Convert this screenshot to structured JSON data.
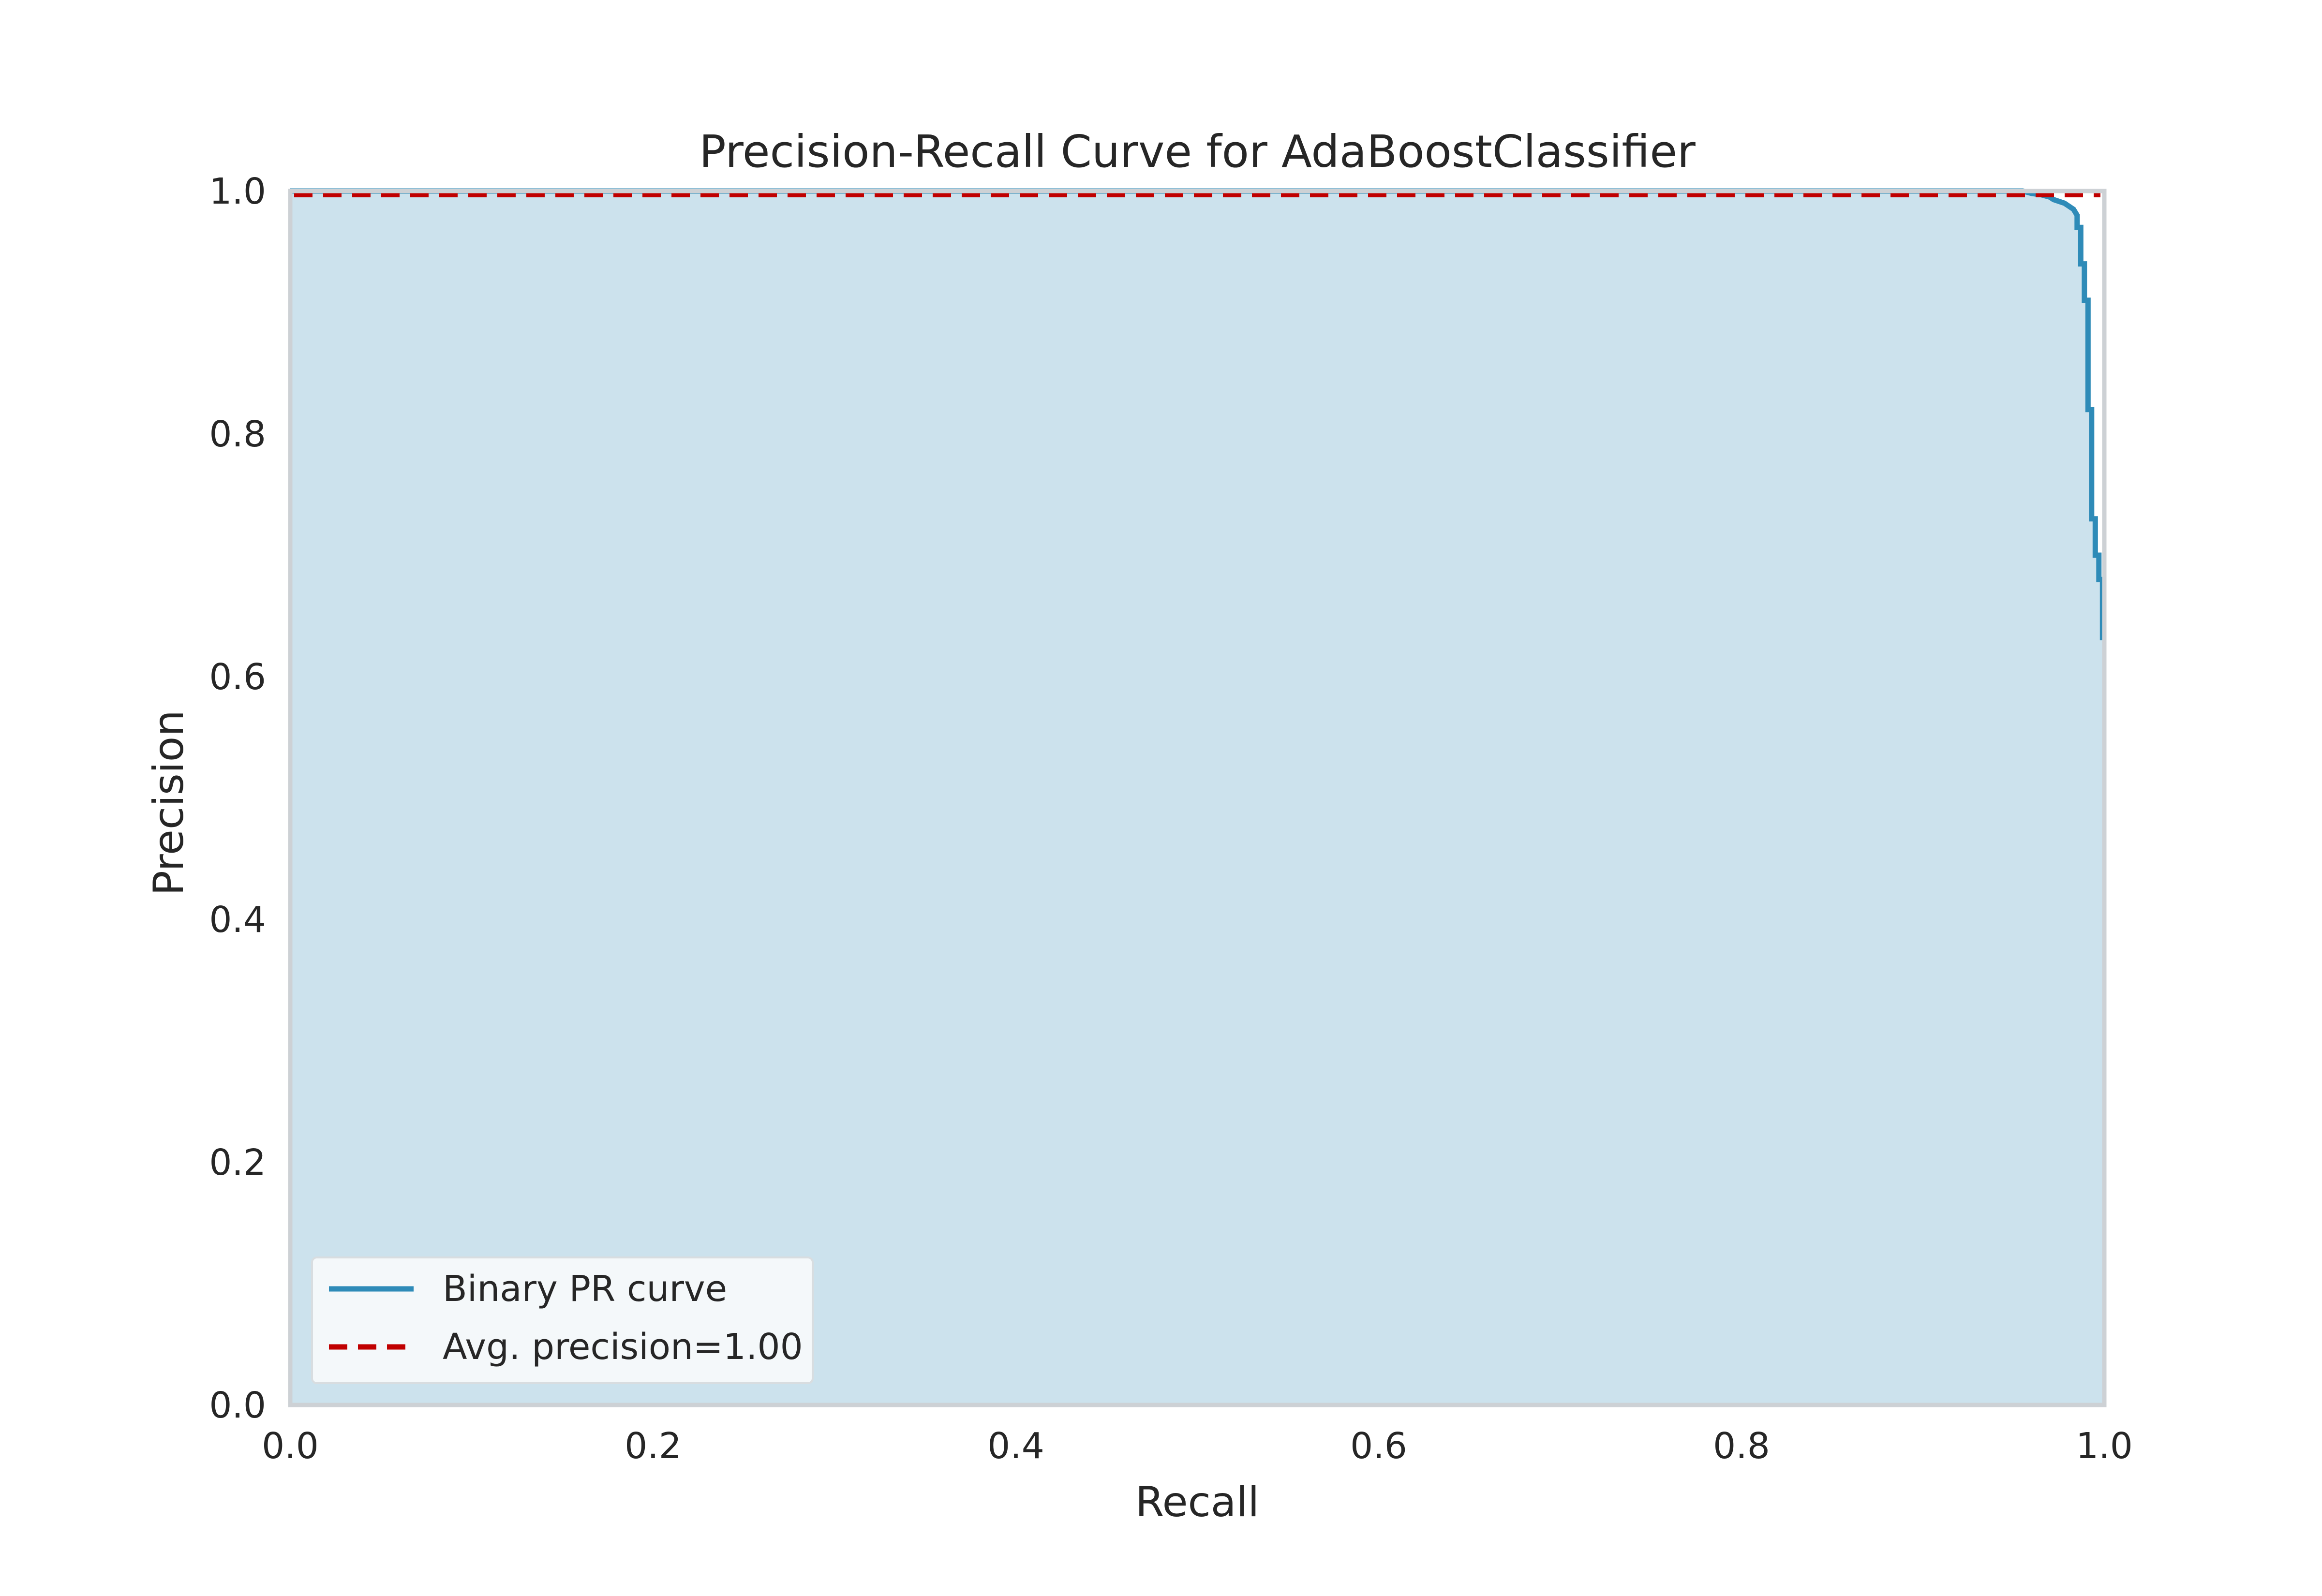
{
  "chart_data": {
    "type": "line",
    "title": "Precision-Recall Curve for AdaBoostClassifier",
    "xlabel": "Recall",
    "ylabel": "Precision",
    "xlim": [
      0.0,
      1.0
    ],
    "ylim": [
      0.0,
      1.0
    ],
    "grid": false,
    "legend_position": "lower-left",
    "xticks": [
      "0.0",
      "0.2",
      "0.4",
      "0.6",
      "0.8",
      "1.0"
    ],
    "yticks": [
      "0.0",
      "0.2",
      "0.4",
      "0.6",
      "0.8",
      "1.0"
    ],
    "series": [
      {
        "name": "Binary PR curve",
        "style": "solid",
        "color": "#2e8bb8",
        "fill_color": "#cce2ed",
        "x": [
          0.0,
          0.94,
          0.955,
          0.96,
          0.965,
          0.97,
          0.972,
          0.978,
          0.983,
          0.985,
          0.985,
          0.987,
          0.987,
          0.989,
          0.989,
          0.991,
          0.991,
          0.993,
          0.993,
          0.995,
          0.995,
          0.997,
          0.997,
          0.999,
          0.999
        ],
        "y": [
          1.0,
          1.0,
          1.0,
          0.998,
          0.997,
          0.995,
          0.993,
          0.99,
          0.985,
          0.98,
          0.97,
          0.97,
          0.94,
          0.94,
          0.91,
          0.91,
          0.82,
          0.82,
          0.73,
          0.73,
          0.7,
          0.7,
          0.68,
          0.68,
          0.63
        ]
      },
      {
        "name": "Avg. precision=1.00",
        "style": "dashed",
        "color": "#c00000",
        "x": [
          0.0,
          1.0
        ],
        "y": [
          0.997,
          0.997
        ]
      }
    ],
    "colors": {
      "background": "#ffffff",
      "plot_background": "#ffffff",
      "frame": "#cdd1d5",
      "legend_background": "#f4f8fa",
      "legend_border": "#d8dde0"
    }
  }
}
